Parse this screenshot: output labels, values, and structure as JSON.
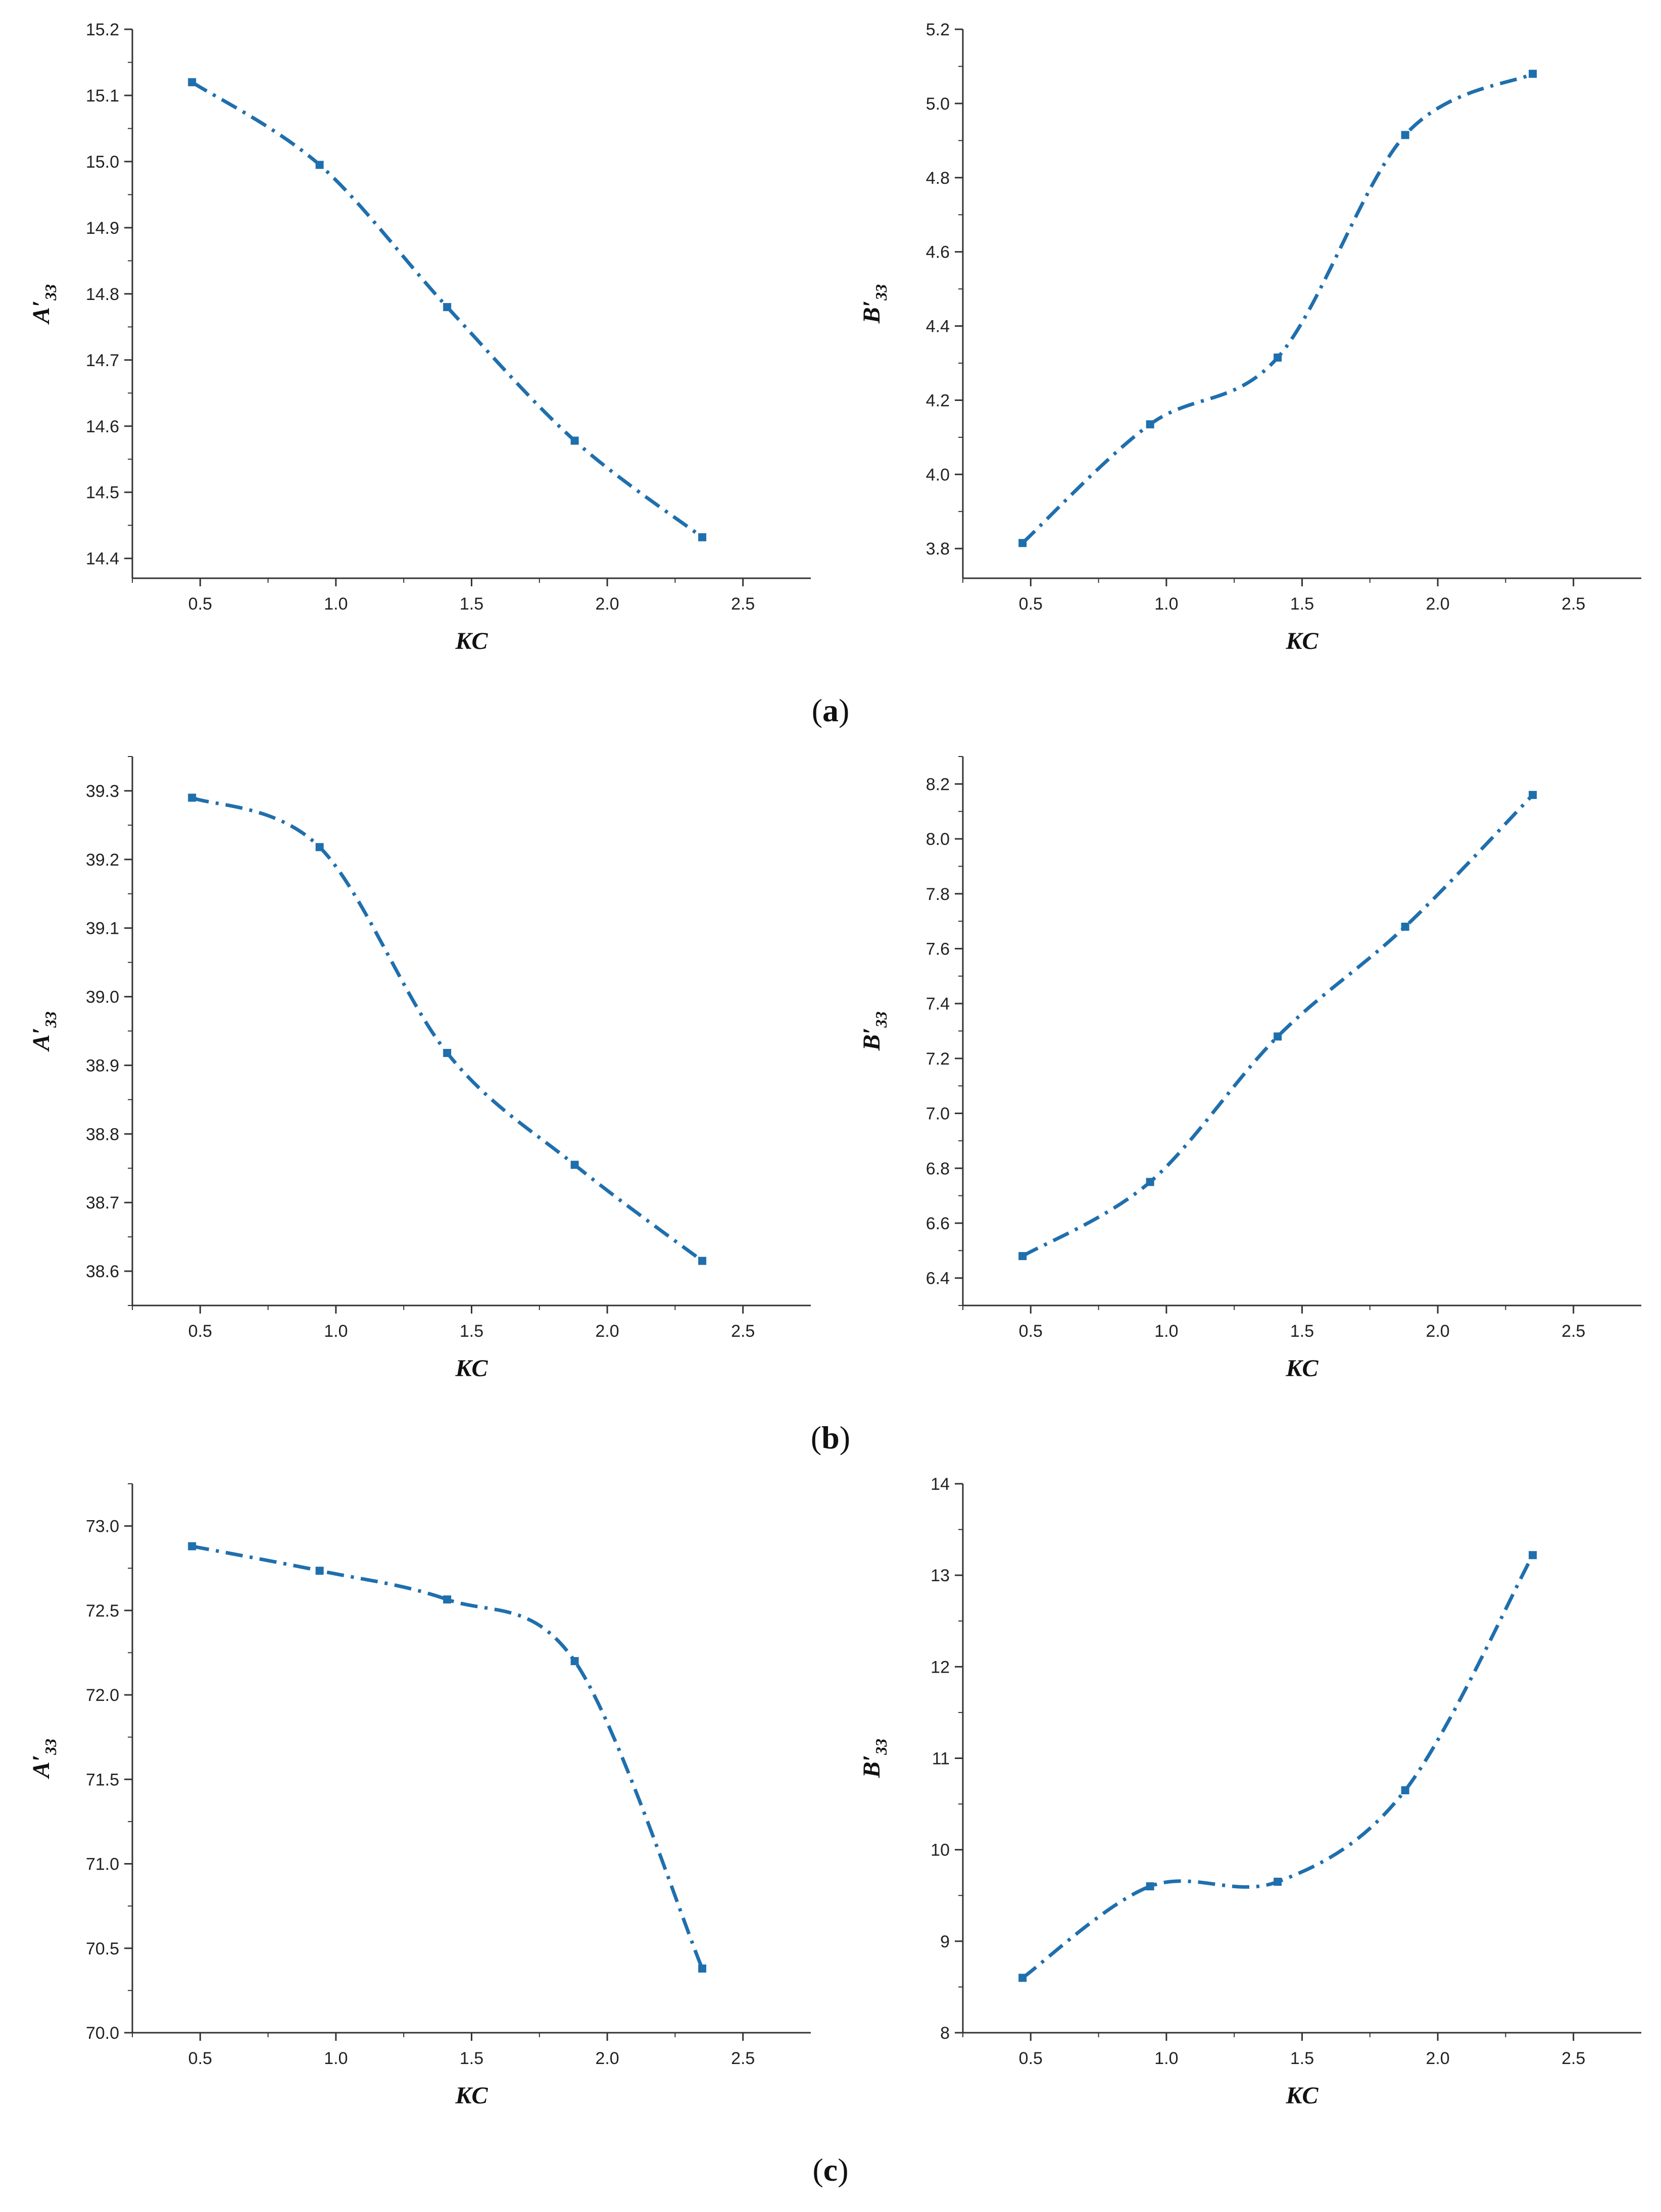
{
  "figure": {
    "line_color": "#1f6fad",
    "captions": [
      {
        "open": "(",
        "letter": "a",
        "close": ")"
      },
      {
        "open": "(",
        "letter": "b",
        "close": ")"
      },
      {
        "open": "(",
        "letter": "c",
        "close": ")"
      }
    ]
  },
  "chart_data": [
    {
      "id": "a-left",
      "type": "line",
      "xlabel": "KC",
      "ylabel_base": "A",
      "ylabel_prime": "′",
      "ylabel_sub": "33",
      "x": [
        0.47,
        0.94,
        1.41,
        1.88,
        2.35
      ],
      "values": [
        15.12,
        14.995,
        14.78,
        14.578,
        14.432
      ],
      "xlim": [
        0.25,
        2.75
      ],
      "xticks": [
        0.5,
        1.0,
        1.5,
        2.0,
        2.5
      ],
      "ylim": [
        14.37,
        15.2
      ],
      "yticks": [
        14.4,
        14.5,
        14.6,
        14.7,
        14.8,
        14.9,
        15.0,
        15.1,
        15.2
      ],
      "xtick_labels": [
        "0.5",
        "1.0",
        "1.5",
        "2.0",
        "2.5"
      ],
      "ytick_labels": [
        "14.4",
        "14.5",
        "14.6",
        "14.7",
        "14.8",
        "14.9",
        "15.0",
        "15.1",
        "15.2"
      ]
    },
    {
      "id": "a-right",
      "type": "line",
      "xlabel": "KC",
      "ylabel_base": "B",
      "ylabel_prime": "′",
      "ylabel_sub": "33",
      "x": [
        0.47,
        0.94,
        1.41,
        1.88,
        2.35
      ],
      "values": [
        3.815,
        4.135,
        4.315,
        4.915,
        5.08
      ],
      "xlim": [
        0.25,
        2.75
      ],
      "xticks": [
        0.5,
        1.0,
        1.5,
        2.0,
        2.5
      ],
      "ylim": [
        3.72,
        5.2
      ],
      "yticks": [
        3.8,
        4.0,
        4.2,
        4.4,
        4.6,
        4.8,
        5.0,
        5.2
      ],
      "xtick_labels": [
        "0.5",
        "1.0",
        "1.5",
        "2.0",
        "2.5"
      ],
      "ytick_labels": [
        "3.8",
        "4.0",
        "4.2",
        "4.4",
        "4.6",
        "4.8",
        "5.0",
        "5.2"
      ]
    },
    {
      "id": "b-left",
      "type": "line",
      "xlabel": "KC",
      "ylabel_base": "A",
      "ylabel_prime": "′",
      "ylabel_sub": "33",
      "x": [
        0.47,
        0.94,
        1.41,
        1.88,
        2.35
      ],
      "values": [
        39.29,
        39.218,
        38.918,
        38.755,
        38.615
      ],
      "xlim": [
        0.25,
        2.75
      ],
      "xticks": [
        0.5,
        1.0,
        1.5,
        2.0,
        2.5
      ],
      "ylim": [
        38.55,
        39.35
      ],
      "yticks": [
        38.6,
        38.7,
        38.8,
        38.9,
        39.0,
        39.1,
        39.2,
        39.3
      ],
      "xtick_labels": [
        "0.5",
        "1.0",
        "1.5",
        "2.0",
        "2.5"
      ],
      "ytick_labels": [
        "38.6",
        "38.7",
        "38.8",
        "38.9",
        "39.0",
        "39.1",
        "39.2",
        "39.3"
      ]
    },
    {
      "id": "b-right",
      "type": "line",
      "xlabel": "KC",
      "ylabel_base": "B",
      "ylabel_prime": "′",
      "ylabel_sub": "33",
      "x": [
        0.47,
        0.94,
        1.41,
        1.88,
        2.35
      ],
      "values": [
        6.48,
        6.75,
        7.28,
        7.68,
        8.16
      ],
      "xlim": [
        0.25,
        2.75
      ],
      "xticks": [
        0.5,
        1.0,
        1.5,
        2.0,
        2.5
      ],
      "ylim": [
        6.3,
        8.3
      ],
      "yticks": [
        6.4,
        6.6,
        6.8,
        7.0,
        7.2,
        7.4,
        7.6,
        7.8,
        8.0,
        8.2
      ],
      "xtick_labels": [
        "0.5",
        "1.0",
        "1.5",
        "2.0",
        "2.5"
      ],
      "ytick_labels": [
        "6.4",
        "6.6",
        "6.8",
        "7.0",
        "7.2",
        "7.4",
        "7.6",
        "7.8",
        "8.0",
        "8.2"
      ]
    },
    {
      "id": "c-left",
      "type": "line",
      "xlabel": "KC",
      "ylabel_base": "A",
      "ylabel_prime": "′",
      "ylabel_sub": "33",
      "x": [
        0.47,
        0.94,
        1.41,
        1.88,
        2.35
      ],
      "values": [
        72.88,
        72.735,
        72.565,
        72.2,
        70.38
      ],
      "xlim": [
        0.25,
        2.75
      ],
      "xticks": [
        0.5,
        1.0,
        1.5,
        2.0,
        2.5
      ],
      "ylim": [
        70.0,
        73.25
      ],
      "yticks": [
        70.0,
        70.5,
        71.0,
        71.5,
        72.0,
        72.5,
        73.0
      ],
      "xtick_labels": [
        "0.5",
        "1.0",
        "1.5",
        "2.0",
        "2.5"
      ],
      "ytick_labels": [
        "70.0",
        "70.5",
        "71.0",
        "71.5",
        "72.0",
        "72.5",
        "73.0"
      ]
    },
    {
      "id": "c-right",
      "type": "line",
      "xlabel": "KC",
      "ylabel_base": "B",
      "ylabel_prime": "′",
      "ylabel_sub": "33",
      "x": [
        0.47,
        0.94,
        1.41,
        1.88,
        2.35
      ],
      "values": [
        8.6,
        9.6,
        9.65,
        10.65,
        13.22
      ],
      "xlim": [
        0.25,
        2.75
      ],
      "xticks": [
        0.5,
        1.0,
        1.5,
        2.0,
        2.5
      ],
      "ylim": [
        8.0,
        14.0
      ],
      "yticks": [
        8,
        9,
        10,
        11,
        12,
        13,
        14
      ],
      "xtick_labels": [
        "0.5",
        "1.0",
        "1.5",
        "2.0",
        "2.5"
      ],
      "ytick_labels": [
        "8",
        "9",
        "10",
        "11",
        "12",
        "13",
        "14"
      ]
    }
  ]
}
